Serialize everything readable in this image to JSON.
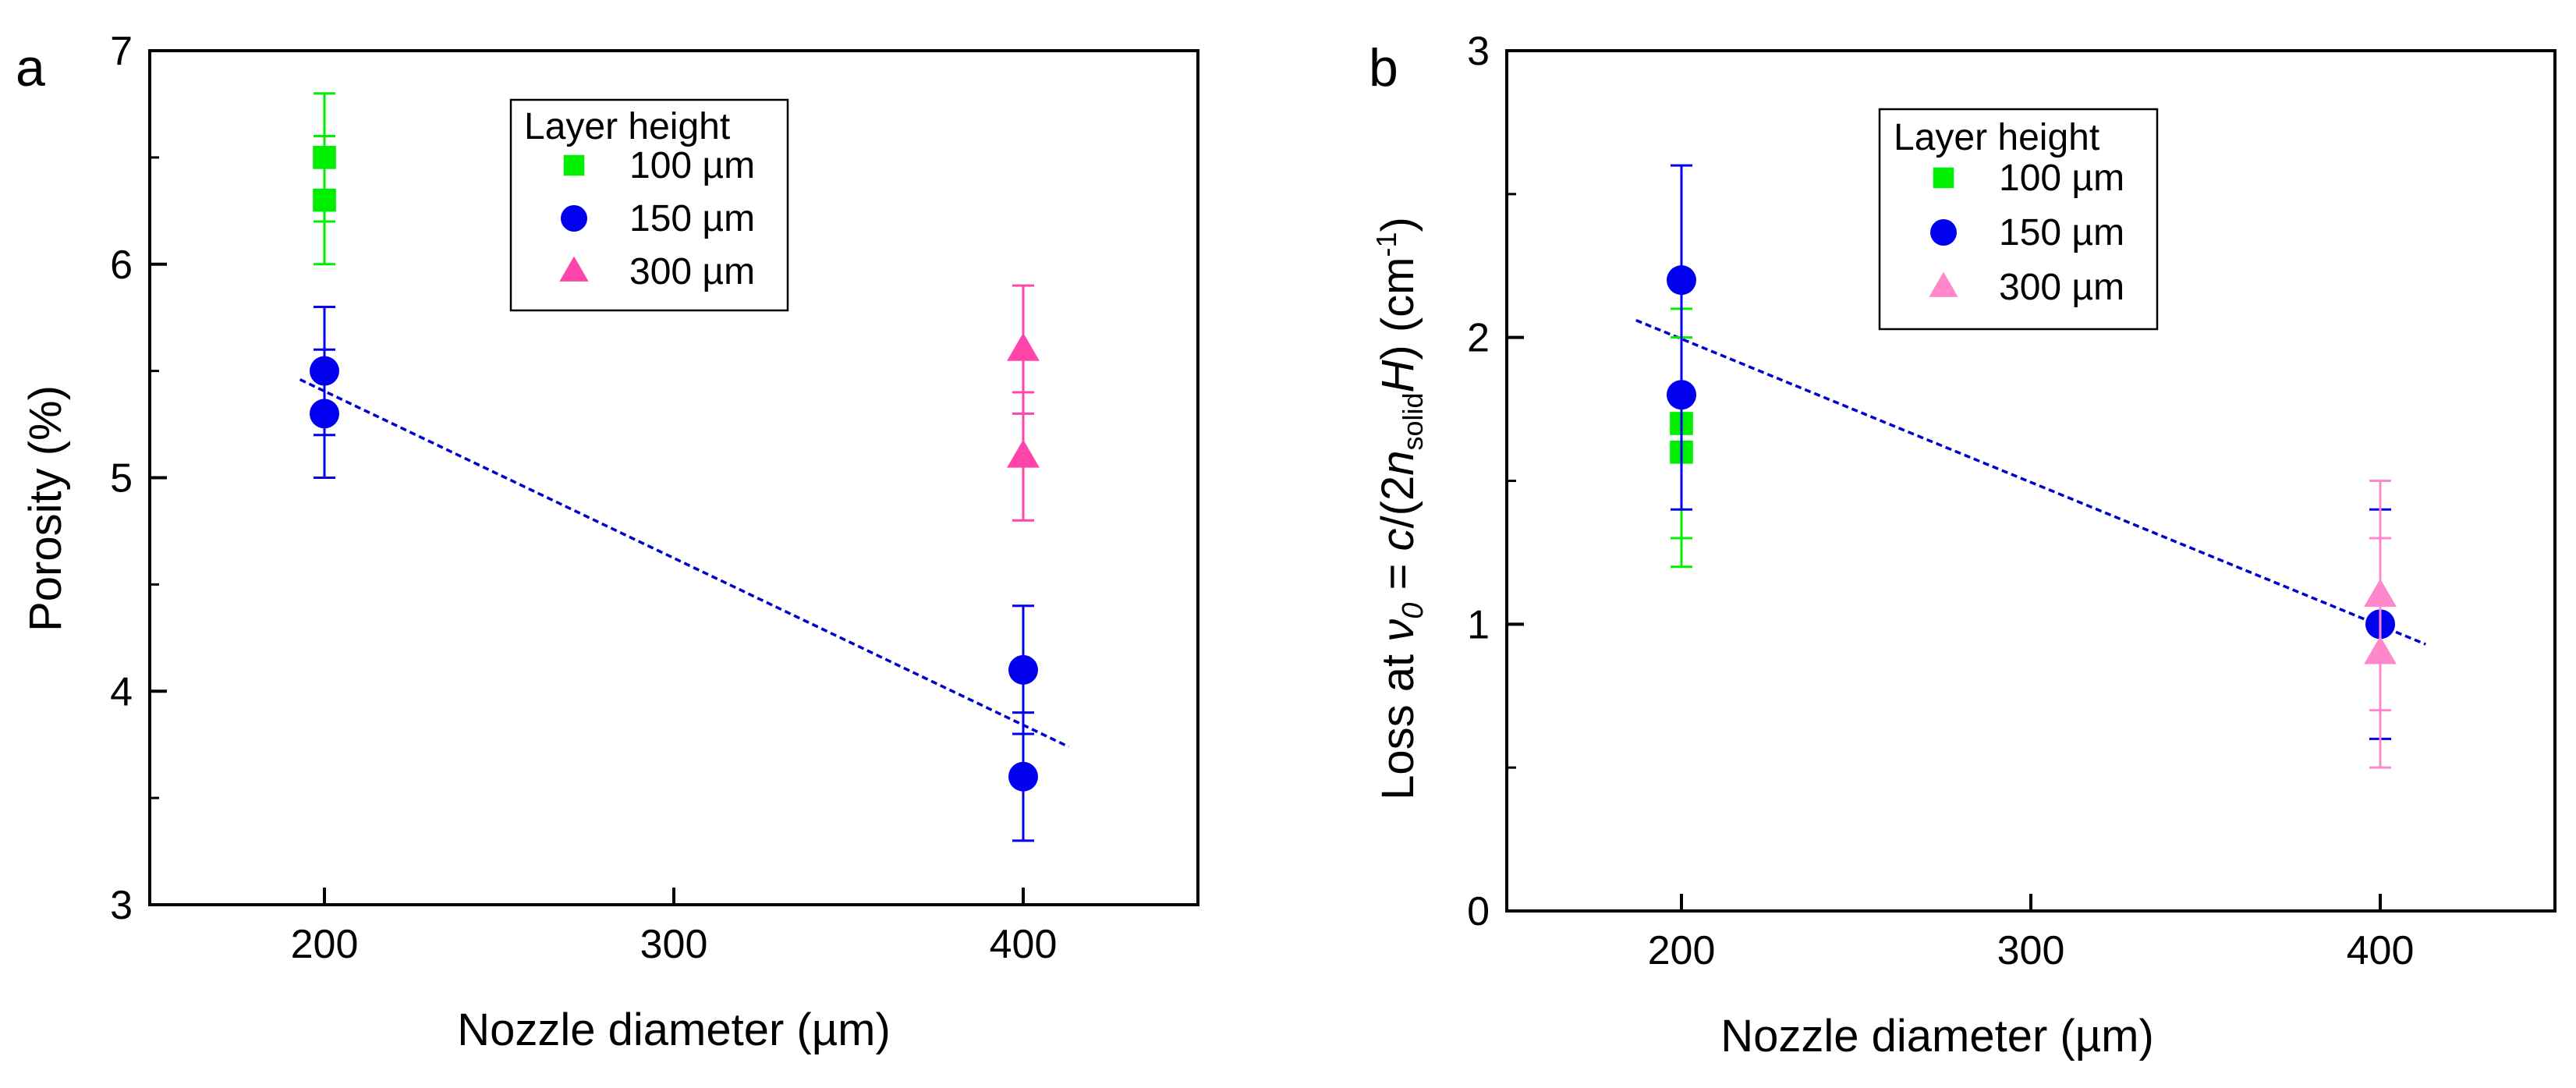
{
  "chart_data": [
    {
      "panel": "a",
      "type": "scatter",
      "xlabel": "Nozzle diameter (µm)",
      "ylabel": "Porosity (%)",
      "xlim": [
        150,
        450
      ],
      "ylim": [
        3,
        7
      ],
      "xticks": [
        "200",
        "300",
        "400"
      ],
      "yticks": [
        "3",
        "4",
        "5",
        "6",
        "7"
      ],
      "legend": {
        "title": "Layer height",
        "placement": "top-center"
      },
      "series": [
        {
          "name": "100 µm",
          "marker": "square",
          "color": "#00ee00",
          "points": [
            {
              "x": 200,
              "y": 6.5,
              "err": 0.3
            },
            {
              "x": 200,
              "y": 6.3,
              "err": 0.3
            }
          ]
        },
        {
          "name": "150 µm",
          "marker": "circle",
          "color": "#0000ee",
          "points": [
            {
              "x": 200,
              "y": 5.5,
              "err": 0.3
            },
            {
              "x": 200,
              "y": 5.3,
              "err": 0.3
            },
            {
              "x": 400,
              "y": 4.1,
              "err": 0.3
            },
            {
              "x": 400,
              "y": 3.6,
              "err": 0.3
            }
          ]
        },
        {
          "name": "300 µm",
          "marker": "triangle",
          "color": "#ff44aa",
          "points": [
            {
              "x": 400,
              "y": 5.6,
              "err": 0.3
            },
            {
              "x": 400,
              "y": 5.1,
              "err": 0.3
            }
          ]
        }
      ],
      "fit": {
        "x": [
          193,
          413
        ],
        "y": [
          5.46,
          3.74
        ],
        "color": "#0000cc",
        "style": "dashed"
      }
    },
    {
      "panel": "b",
      "type": "scatter",
      "xlabel": "Nozzle diameter (µm)",
      "ylabel": {
        "prefix": "Loss at ",
        "nu": "ν",
        "nu_sub": "0",
        "eq": " = ",
        "c": "c",
        "mid": "/(2",
        "n": "n",
        "n_sub": "solid",
        "H": "H",
        "close": ")",
        "unit_pre": " (cm",
        "unit_sup": "-1",
        "unit_post": ")"
      },
      "xlim": [
        150,
        450
      ],
      "ylim": [
        0,
        3
      ],
      "xticks": [
        "200",
        "300",
        "400"
      ],
      "yticks": [
        "0",
        "1",
        "2",
        "3"
      ],
      "legend": {
        "title": "Layer height",
        "placement": "top-center"
      },
      "series": [
        {
          "name": "100 µm",
          "marker": "square",
          "color": "#00ee00",
          "points": [
            {
              "x": 200,
              "y": 1.7,
              "err": 0.4
            },
            {
              "x": 200,
              "y": 1.6,
              "err": 0.4
            }
          ]
        },
        {
          "name": "150 µm",
          "marker": "circle",
          "color": "#0000ee",
          "points": [
            {
              "x": 200,
              "y": 2.2,
              "err": 0.4
            },
            {
              "x": 200,
              "y": 1.8,
              "err": 0.4
            },
            {
              "x": 400,
              "y": 1.0,
              "err": 0.4
            }
          ]
        },
        {
          "name": "300 µm",
          "marker": "triangle",
          "color": "#ff88cc",
          "points": [
            {
              "x": 400,
              "y": 1.1,
              "err": 0.4
            },
            {
              "x": 400,
              "y": 0.9,
              "err": 0.4
            }
          ]
        }
      ],
      "fit": {
        "x": [
          187,
          413
        ],
        "y": [
          2.06,
          0.93
        ],
        "color": "#0000cc",
        "style": "dashed"
      }
    }
  ]
}
